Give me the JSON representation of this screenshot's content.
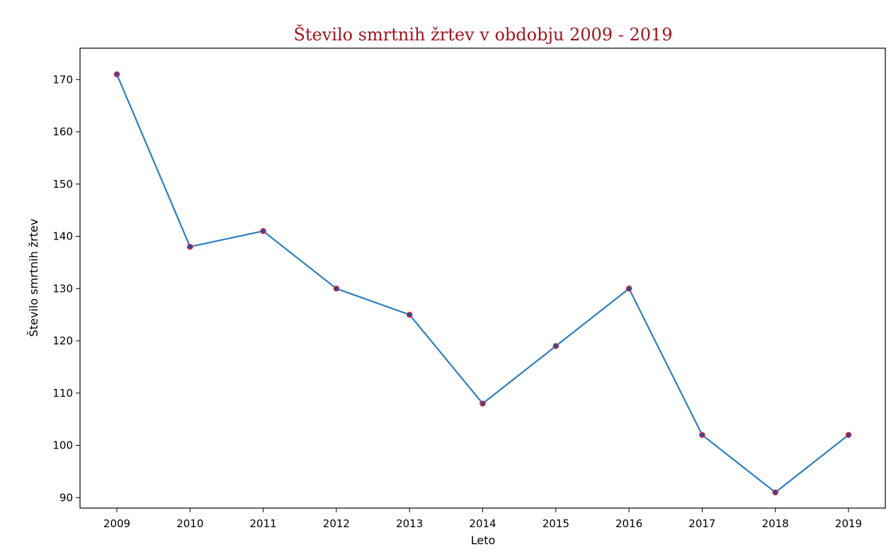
{
  "chart_data": {
    "type": "line",
    "title": "Število smrtnih žrtev v obdobju 2009 - 2019",
    "xlabel": "Leto",
    "ylabel": "Število smrtnih žrtev",
    "x": [
      "2009",
      "2010",
      "2011",
      "2012",
      "2013",
      "2014",
      "2015",
      "2016",
      "2017",
      "2018",
      "2019"
    ],
    "y": [
      171,
      138,
      141,
      130,
      125,
      108,
      119,
      130,
      102,
      91,
      102
    ],
    "yticks": [
      "90",
      "100",
      "110",
      "120",
      "130",
      "140",
      "150",
      "160",
      "170"
    ],
    "ylim": [
      88,
      176
    ],
    "grid": false,
    "legend": false,
    "colors": {
      "line": "#2e7ebf",
      "marker_face": "#1f4e9e",
      "marker_edge": "#e8283a",
      "title": "#a0151f"
    }
  }
}
